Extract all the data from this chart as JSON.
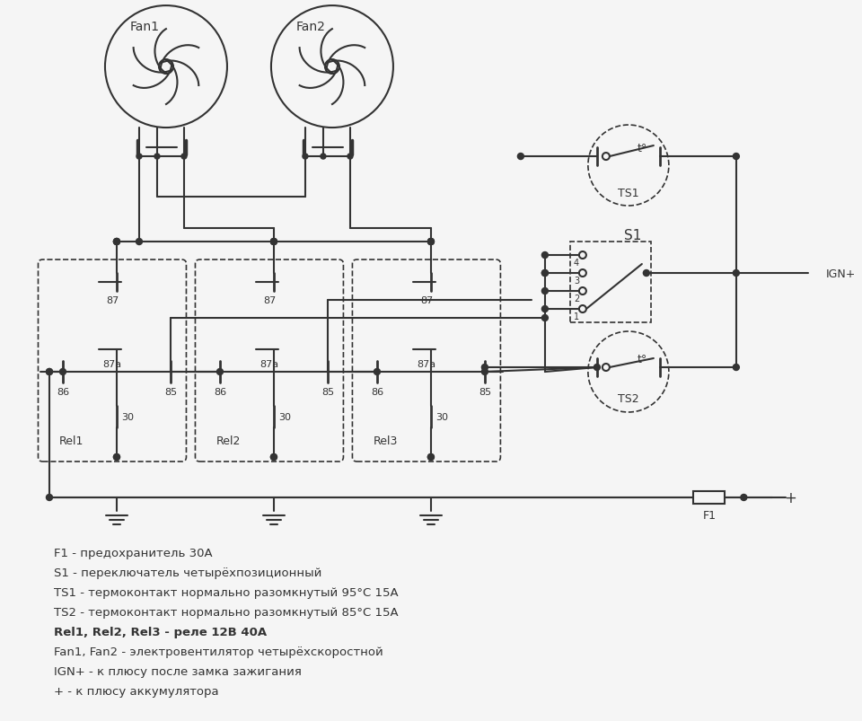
{
  "bg_color": "#f5f5f5",
  "line_color": "#333333",
  "legend_lines": [
    "F1 - предохранитель 30A",
    "S1 - переключатель четырёхпозиционный",
    "TS1 - термоконтакт нормально разомкнутый 95°C 15A",
    "TS2 - термоконтакт нормально разомкнутый 85°C 15A",
    "Rel1, Rel2, Rel3 - реле 12В 40A",
    "Fan1, Fan2 - электровентилятор четырёхскоростной",
    "IGN+ - к плюсу после замка зажигания",
    "+ - к плюсу аккумулятора"
  ]
}
